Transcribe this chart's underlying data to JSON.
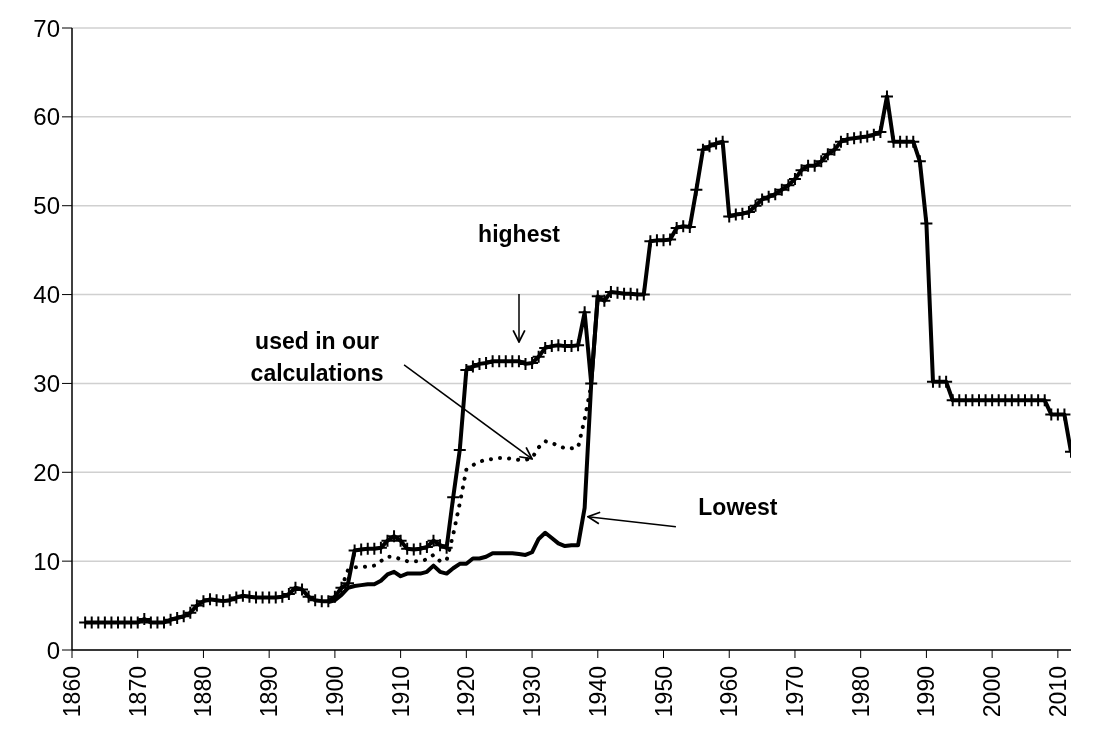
{
  "chart_data": {
    "type": "line",
    "xlim": [
      1860,
      2012
    ],
    "xticks": [
      1860,
      1870,
      1880,
      1890,
      1900,
      1910,
      1920,
      1930,
      1940,
      1950,
      1960,
      1970,
      1980,
      1990,
      2000,
      2010
    ],
    "ylim": [
      0,
      70
    ],
    "yticks": [
      0,
      10,
      20,
      30,
      40,
      50,
      60,
      70
    ],
    "grid": "y",
    "legend": false,
    "annotations": [
      "highest",
      {
        "text": "used in our calculations",
        "x": 1930,
        "y": 21.5
      },
      {
        "text": "Lowest",
        "x": 1938.5,
        "y": 15
      }
    ],
    "series": [
      {
        "color": "#000000",
        "marker": "cross",
        "line_style": "solid",
        "x": [
          1862,
          1863,
          1864,
          1865,
          1866,
          1867,
          1868,
          1869,
          1870,
          1871,
          1872,
          1873,
          1874,
          1875,
          1876,
          1877,
          1878,
          1879,
          1880,
          1881,
          1882,
          1883,
          1884,
          1885,
          1886,
          1887,
          1888,
          1889,
          1890,
          1891,
          1892,
          1893,
          1894,
          1895,
          1896,
          1897,
          1898,
          1899,
          1900,
          1901,
          1902,
          1903,
          1904,
          1905,
          1906,
          1907,
          1908,
          1909,
          1910,
          1911,
          1912,
          1913,
          1914,
          1915,
          1916,
          1917,
          1918,
          1919,
          1920,
          1921,
          1922,
          1923,
          1924,
          1925,
          1926,
          1927,
          1928,
          1929,
          1930,
          1931,
          1932,
          1933,
          1934,
          1935,
          1936,
          1937,
          1938,
          1939,
          1940,
          1941,
          1942,
          1943,
          1944,
          1945,
          1946,
          1947,
          1948,
          1949,
          1950,
          1951,
          1952,
          1953,
          1954,
          1955,
          1956,
          1957,
          1958,
          1959,
          1960,
          1961,
          1962,
          1963,
          1964,
          1965,
          1966,
          1967,
          1968,
          1969,
          1970,
          1971,
          1972,
          1973,
          1974,
          1975,
          1976,
          1977,
          1978,
          1979,
          1980,
          1981,
          1982,
          1983,
          1984,
          1985,
          1986,
          1987,
          1988,
          1989,
          1990,
          1991,
          1992,
          1993,
          1994,
          1995,
          1996,
          1997,
          1998,
          1999,
          2000,
          2001,
          2002,
          2003,
          2004,
          2005,
          2006,
          2007,
          2008,
          2009,
          2010,
          2011,
          2012
        ],
        "values": [
          3.1,
          3.1,
          3.1,
          3.1,
          3.1,
          3.1,
          3.1,
          3.1,
          3.1,
          3.5,
          3.1,
          3.1,
          3.1,
          3.4,
          3.6,
          3.8,
          4.2,
          5,
          5.5,
          5.7,
          5.6,
          5.5,
          5.6,
          5.9,
          6.1,
          6,
          5.9,
          5.9,
          5.9,
          5.9,
          6,
          6.3,
          7,
          6.8,
          6,
          5.6,
          5.5,
          5.5,
          6,
          7,
          7.5,
          11.2,
          11.3,
          11.4,
          11.4,
          11.5,
          12.3,
          12.8,
          12.3,
          11.4,
          11.3,
          11.4,
          11.6,
          12.3,
          11.8,
          11.5,
          17.2,
          22.5,
          31.5,
          31.9,
          32.2,
          32.3,
          32.5,
          32.5,
          32.5,
          32.5,
          32.5,
          32.2,
          32.3,
          33,
          34,
          34.2,
          34.3,
          34.2,
          34.2,
          34.3,
          38,
          30,
          39.8,
          39.3,
          40.3,
          40.2,
          40.1,
          40.1,
          40,
          40,
          46,
          46.1,
          46.1,
          46.2,
          47.5,
          47.7,
          47.6,
          51.8,
          56.3,
          56.7,
          57,
          57.2,
          48.8,
          49,
          49.1,
          49.3,
          50,
          50.7,
          51,
          51.3,
          51.8,
          52.3,
          53,
          54,
          54.5,
          54.5,
          55,
          55.8,
          56.3,
          57.2,
          57.5,
          57.6,
          57.7,
          57.8,
          58,
          58.3,
          62.3,
          57.2,
          57.2,
          57.2,
          57.2,
          55,
          48,
          30.2,
          30.2,
          30.2,
          28.1,
          28.1,
          28.1,
          28.1,
          28.1,
          28.1,
          28.1,
          28.1,
          28.1,
          28.1,
          28.1,
          28.1,
          28.1,
          28.1,
          28.1,
          26.5,
          26.5,
          26.5,
          22.3
        ]
      },
      {
        "color": "#000000",
        "marker": "none",
        "line_style": "dotted",
        "x": [
          1901,
          1902,
          1903,
          1904,
          1905,
          1906,
          1907,
          1908,
          1909,
          1910,
          1911,
          1912,
          1913,
          1914,
          1915,
          1916,
          1917,
          1918,
          1919,
          1920,
          1921,
          1922,
          1923,
          1924,
          1925,
          1926,
          1927,
          1928,
          1929,
          1930,
          1931,
          1932,
          1933,
          1934,
          1935,
          1936,
          1937,
          1938,
          1939
        ],
        "values": [
          7,
          9,
          9.3,
          9.3,
          9.4,
          9.5,
          10,
          10.5,
          10.5,
          10.2,
          10,
          10,
          10,
          10.2,
          10.7,
          10,
          10.1,
          13,
          16.5,
          20.3,
          20.8,
          21.2,
          21.4,
          21.5,
          21.6,
          21.6,
          21.5,
          21.4,
          21.4,
          21.6,
          22.8,
          23.5,
          23.3,
          23,
          22.7,
          22.7,
          22.8,
          26,
          29.8
        ]
      },
      {
        "color": "#000000",
        "marker": "none",
        "line_style": "solid",
        "x": [
          1899,
          1900,
          1901,
          1902,
          1903,
          1904,
          1905,
          1906,
          1907,
          1908,
          1909,
          1910,
          1911,
          1912,
          1913,
          1914,
          1915,
          1916,
          1917,
          1918,
          1919,
          1920,
          1921,
          1922,
          1923,
          1924,
          1925,
          1926,
          1927,
          1928,
          1929,
          1930,
          1931,
          1932,
          1933,
          1934,
          1935,
          1936,
          1937,
          1938,
          1939,
          1940
        ],
        "values": [
          5.4,
          5.6,
          6.2,
          7,
          7.2,
          7.3,
          7.4,
          7.4,
          7.8,
          8.5,
          8.8,
          8.3,
          8.6,
          8.6,
          8.6,
          8.8,
          9.5,
          8.8,
          8.6,
          9.2,
          9.7,
          9.7,
          10.3,
          10.3,
          10.5,
          10.9,
          10.9,
          10.9,
          10.9,
          10.8,
          10.7,
          11,
          12.5,
          13.2,
          12.6,
          12,
          11.7,
          11.8,
          11.8,
          16,
          30,
          39.8
        ]
      }
    ]
  }
}
